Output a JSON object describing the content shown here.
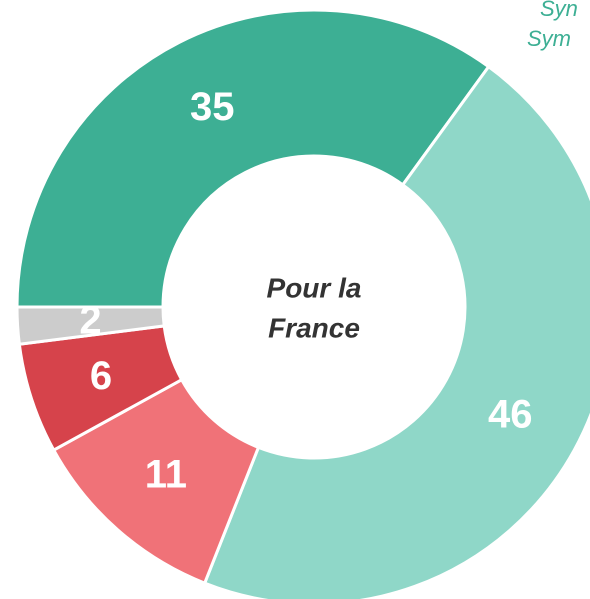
{
  "chart_data": {
    "type": "donut",
    "values": [
      35,
      46,
      11,
      6,
      2
    ],
    "colors": [
      "#3daf94",
      "#8fd7c8",
      "#f07278",
      "#d6434b",
      "#cccccc"
    ],
    "start_angle": 270,
    "center_label": [
      "Pour la",
      "France"
    ],
    "annotations": [
      "Syn",
      "Sym"
    ]
  }
}
